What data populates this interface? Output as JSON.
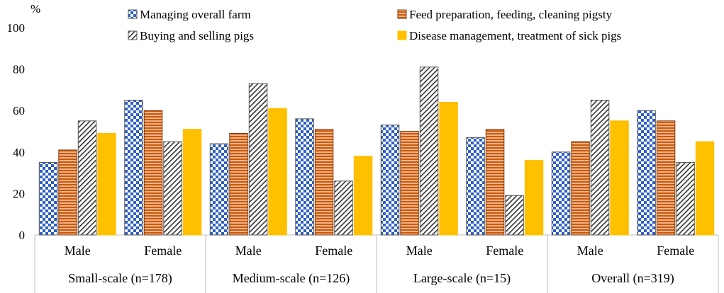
{
  "chart_data": {
    "type": "bar",
    "y_unit_label": "%",
    "ylim": [
      0,
      100
    ],
    "yticks": [
      0,
      20,
      40,
      60,
      80,
      100
    ],
    "groups": [
      {
        "label": "Small-scale (n=178)",
        "categories": [
          "Male",
          "Female"
        ]
      },
      {
        "label": "Medium-scale (n=126)",
        "categories": [
          "Male",
          "Female"
        ]
      },
      {
        "label": "Large-scale (n=15)",
        "categories": [
          "Male",
          "Female"
        ]
      },
      {
        "label": "Overall (n=319)",
        "categories": [
          "Male",
          "Female"
        ]
      }
    ],
    "series": [
      {
        "name": "Managing overall farm",
        "pattern": "checker",
        "color": "#2e5fc6",
        "values": [
          35,
          65,
          44,
          56,
          53,
          47,
          40,
          60
        ]
      },
      {
        "name": "Feed preparation, feeding, cleaning pigsty",
        "pattern": "hstripes",
        "color": "#c55a11",
        "values": [
          41,
          60,
          49,
          51,
          50,
          51,
          45,
          55
        ]
      },
      {
        "name": "Buying and selling pigs",
        "pattern": "diagonal",
        "color": "#404040",
        "values": [
          55,
          45,
          73,
          26,
          81,
          19,
          65,
          35
        ]
      },
      {
        "name": "Disease management, treatment of sick pigs",
        "pattern": "solid",
        "color": "#ffc000",
        "values": [
          49,
          51,
          61,
          38,
          64,
          36,
          55,
          45
        ]
      }
    ]
  }
}
